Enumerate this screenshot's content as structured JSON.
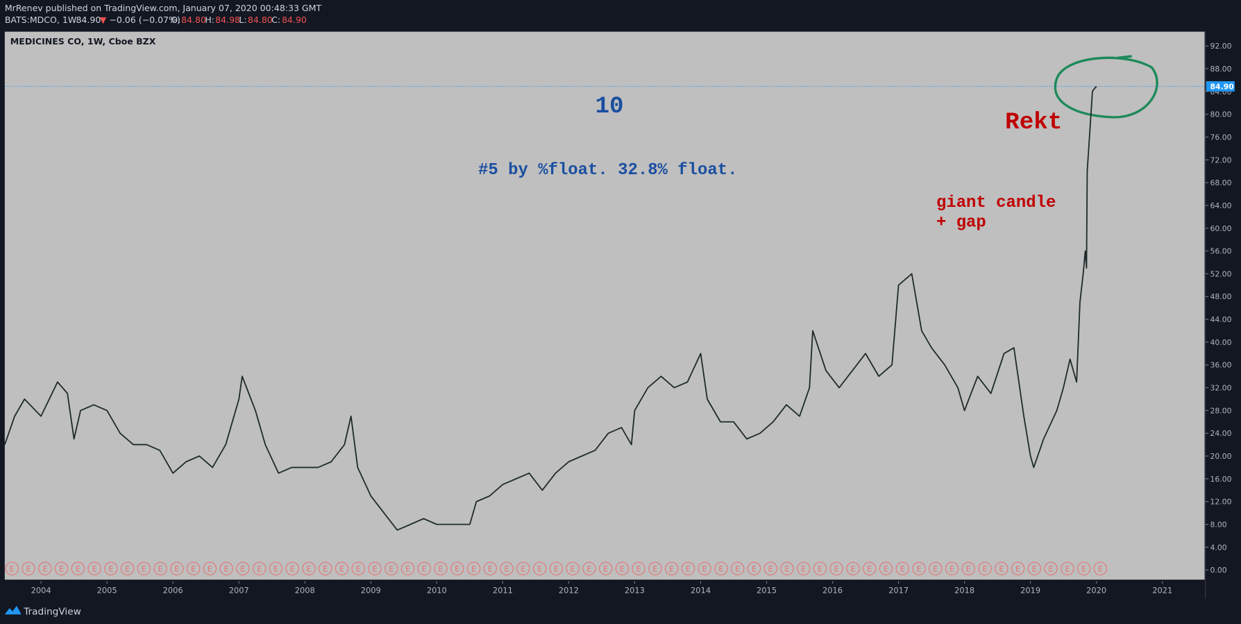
{
  "header": {
    "publisher": "MrRenev published on TradingView.com, January 07, 2020 00:48:33 GMT",
    "symbol": "BATS:MDCO, 1W",
    "last": "84.90",
    "arrow": "▼",
    "change": "−0.06 (−0.07%)",
    "o_label": "O:",
    "o": "84.80",
    "h_label": "H:",
    "h": "84.98",
    "l_label": "L:",
    "l": "84.80",
    "c_label": "C:",
    "c": "84.90"
  },
  "footer": {
    "brand": "TradingView"
  },
  "chart_data": {
    "type": "line",
    "title": "MEDICINES CO, 1W, Cboe BZX",
    "annotations": {
      "number": "10",
      "float": "#5 by %float. 32.8% float.",
      "candle_1": "giant candle",
      "candle_2": "+ gap",
      "rekt": "Rekt"
    },
    "last_price": {
      "value": 84.9,
      "label": "84.90"
    },
    "xlim": [
      2003.45,
      2021.64
    ],
    "xticks": [
      2004,
      2005,
      2006,
      2007,
      2008,
      2009,
      2010,
      2011,
      2012,
      2013,
      2014,
      2015,
      2016,
      2017,
      2018,
      2019,
      2020,
      2021
    ],
    "ylim": [
      -1.7,
      94.5
    ],
    "yticks": [
      {
        "value": 0,
        "label": "0.00"
      },
      {
        "value": 4,
        "label": "4.00"
      },
      {
        "value": 8,
        "label": "8.00"
      },
      {
        "value": 12,
        "label": "12.00"
      },
      {
        "value": 16,
        "label": "16.00"
      },
      {
        "value": 20,
        "label": "20.00"
      },
      {
        "value": 24,
        "label": "24.00"
      },
      {
        "value": 28,
        "label": "28.00"
      },
      {
        "value": 32,
        "label": "32.00"
      },
      {
        "value": 36,
        "label": "36.00"
      },
      {
        "value": 40,
        "label": "40.00"
      },
      {
        "value": 44,
        "label": "44.00"
      },
      {
        "value": 48,
        "label": "48.00"
      },
      {
        "value": 52,
        "label": "52.00"
      },
      {
        "value": 56,
        "label": "56.00"
      },
      {
        "value": 60,
        "label": "60.00"
      },
      {
        "value": 64,
        "label": "64.00"
      },
      {
        "value": 68,
        "label": "68.00"
      },
      {
        "value": 72,
        "label": "72.00"
      },
      {
        "value": 76,
        "label": "76.00"
      },
      {
        "value": 80,
        "label": "80.00"
      },
      {
        "value": 84,
        "label": "84.00"
      },
      {
        "value": 88,
        "label": "88.00"
      },
      {
        "value": 92,
        "label": "92.00"
      }
    ],
    "series": [
      {
        "name": "MDCO",
        "color": "#1f2b2b",
        "x": [
          2003.45,
          2003.6,
          2003.75,
          2004.0,
          2004.25,
          2004.4,
          2004.5,
          2004.6,
          2004.8,
          2005.0,
          2005.2,
          2005.4,
          2005.6,
          2005.8,
          2006.0,
          2006.2,
          2006.4,
          2006.6,
          2006.8,
          2007.0,
          2007.05,
          2007.25,
          2007.4,
          2007.6,
          2007.8,
          2008.0,
          2008.2,
          2008.4,
          2008.6,
          2008.7,
          2008.8,
          2009.0,
          2009.2,
          2009.4,
          2009.6,
          2009.8,
          2010.0,
          2010.3,
          2010.5,
          2010.6,
          2010.8,
          2011.0,
          2011.2,
          2011.4,
          2011.6,
          2011.8,
          2012.0,
          2012.2,
          2012.4,
          2012.6,
          2012.8,
          2012.95,
          2013.0,
          2013.2,
          2013.4,
          2013.6,
          2013.8,
          2014.0,
          2014.1,
          2014.3,
          2014.5,
          2014.7,
          2014.9,
          2015.1,
          2015.3,
          2015.5,
          2015.65,
          2015.7,
          2015.9,
          2016.1,
          2016.3,
          2016.5,
          2016.7,
          2016.9,
          2017.0,
          2017.2,
          2017.35,
          2017.5,
          2017.7,
          2017.9,
          2018.0,
          2018.2,
          2018.4,
          2018.6,
          2018.75,
          2018.9,
          2019.0,
          2019.05,
          2019.2,
          2019.4,
          2019.5,
          2019.6,
          2019.7,
          2019.75,
          2019.8,
          2019.83,
          2019.85,
          2019.86,
          2019.94,
          2019.97,
          2020.0
        ],
        "values": [
          22,
          27,
          30,
          27,
          33,
          31,
          23,
          28,
          29,
          28,
          24,
          22,
          22,
          21,
          17,
          19,
          20,
          18,
          22,
          30,
          34,
          28,
          22,
          17,
          18,
          18,
          18,
          19,
          22,
          27,
          18,
          13,
          10,
          7,
          8,
          9,
          8,
          8,
          8,
          12,
          13,
          15,
          16,
          17,
          14,
          17,
          19,
          20,
          21,
          24,
          25,
          22,
          28,
          32,
          34,
          32,
          33,
          38,
          30,
          26,
          26,
          23,
          24,
          26,
          29,
          27,
          32,
          42,
          35,
          32,
          35,
          38,
          34,
          36,
          50,
          52,
          42,
          39,
          36,
          32,
          28,
          34,
          31,
          38,
          39,
          27,
          20,
          18,
          23,
          28,
          32,
          37,
          33,
          47,
          52,
          56,
          53,
          70,
          84,
          84.5,
          84.9
        ]
      }
    ],
    "events": {
      "label": "E",
      "x": [
        2003.56,
        2003.81,
        2004.06,
        2004.31,
        2004.56,
        2004.81,
        2005.06,
        2005.31,
        2005.56,
        2005.81,
        2006.06,
        2006.31,
        2006.56,
        2006.81,
        2007.06,
        2007.31,
        2007.56,
        2007.81,
        2008.06,
        2008.31,
        2008.56,
        2008.81,
        2009.06,
        2009.31,
        2009.56,
        2009.81,
        2010.06,
        2010.31,
        2010.56,
        2010.81,
        2011.06,
        2011.31,
        2011.56,
        2011.81,
        2012.06,
        2012.31,
        2012.56,
        2012.81,
        2013.06,
        2013.31,
        2013.56,
        2013.81,
        2014.06,
        2014.31,
        2014.56,
        2014.81,
        2015.06,
        2015.31,
        2015.56,
        2015.81,
        2016.06,
        2016.31,
        2016.56,
        2016.81,
        2017.06,
        2017.31,
        2017.56,
        2017.81,
        2018.06,
        2018.31,
        2018.56,
        2018.81,
        2019.06,
        2019.31,
        2019.56,
        2019.81,
        2020.06
      ]
    }
  }
}
